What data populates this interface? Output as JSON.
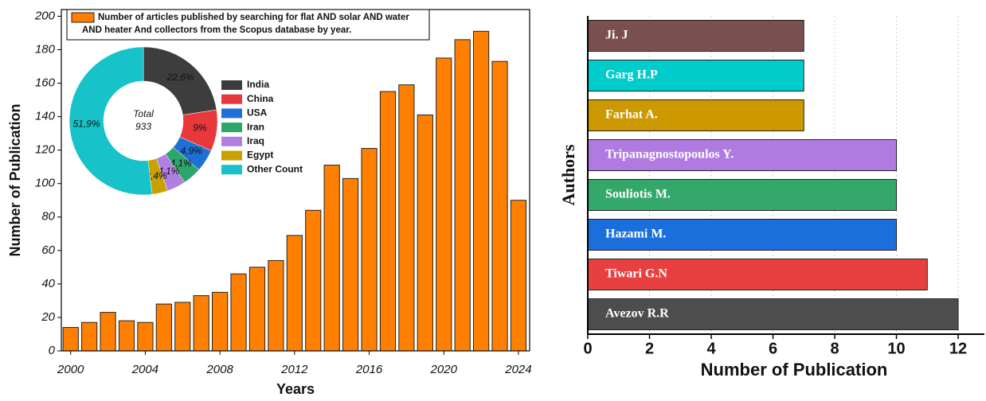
{
  "chart_data": [
    {
      "type": "bar",
      "x_label": "Years",
      "y_label": "Number of Publication",
      "x": [
        2000,
        2001,
        2002,
        2003,
        2004,
        2005,
        2006,
        2007,
        2008,
        2009,
        2010,
        2011,
        2012,
        2013,
        2014,
        2015,
        2016,
        2017,
        2018,
        2019,
        2020,
        2021,
        2022,
        2023,
        2024
      ],
      "series": [
        {
          "name": "Number of articles published by searching for flat AND solar AND water AND heater And collectors from the Scopus database by year.",
          "color": "#ff8000",
          "values": [
            14,
            17,
            23,
            18,
            17,
            28,
            29,
            33,
            35,
            46,
            50,
            54,
            69,
            84,
            111,
            103,
            121,
            155,
            159,
            141,
            175,
            186,
            191,
            173,
            90
          ]
        }
      ],
      "xlim": [
        1999.5,
        2024.6
      ],
      "xticks": [
        2000,
        2004,
        2008,
        2012,
        2016,
        2020,
        2024
      ],
      "ylim": [
        0,
        204
      ],
      "yticks": [
        0,
        20,
        40,
        60,
        80,
        100,
        120,
        140,
        160,
        180,
        200
      ]
    },
    {
      "type": "pie",
      "center_title": "Total",
      "total": 933,
      "categories": [
        "India",
        "China",
        "USA",
        "Iran",
        "Iraq",
        "Egypt",
        "Other Count"
      ],
      "values": [
        22.6,
        9,
        4.9,
        4.1,
        4.1,
        3.4,
        51.9
      ],
      "value_labels": [
        "22,6%",
        "9%",
        "4,9%",
        "4,1%",
        "4,1%",
        "3,4%",
        "51,9%"
      ],
      "colors": [
        "#3d3d3d",
        "#e8383b",
        "#1f6fd6",
        "#2ea56a",
        "#b17fe0",
        "#c9a000",
        "#17c2c9"
      ]
    },
    {
      "type": "barh",
      "x_label": "Number of Publication",
      "y_label": "Authors",
      "categories": [
        "Avezov R.R",
        "Tiwari G.N",
        "Hazami M.",
        "Souliotis M.",
        "Tripanagnostopoulos Y.",
        "Farhat A.",
        "Garg H.P",
        "Ji. J"
      ],
      "values": [
        12,
        11,
        10,
        10,
        10,
        7,
        7,
        7
      ],
      "colors": [
        "#4d4d4d",
        "#e84040",
        "#1a6fdc",
        "#33a86a",
        "#b07be0",
        "#cc9900",
        "#00cccc",
        "#7a4f4f"
      ],
      "xlim": [
        0,
        12.85
      ],
      "xticks": [
        0,
        2,
        4,
        6,
        8,
        10,
        12
      ],
      "grid": true
    }
  ]
}
